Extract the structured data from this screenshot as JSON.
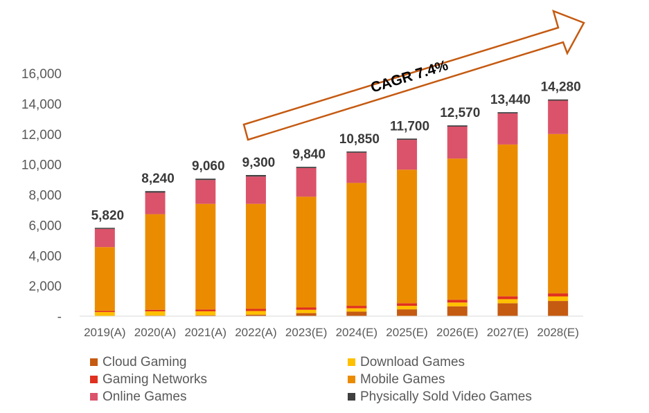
{
  "chart_data": {
    "type": "stacked-bar",
    "title": "",
    "xlabel": "",
    "ylabel": "",
    "ylim": [
      0,
      16000
    ],
    "yticks": [
      0,
      2000,
      4000,
      6000,
      8000,
      10000,
      12000,
      14000,
      16000
    ],
    "ytick_labels": [
      "-",
      "2,000",
      "4,000",
      "6,000",
      "8,000",
      "10,000",
      "12,000",
      "14,000",
      "16,000"
    ],
    "categories": [
      "2019(A)",
      "2020(A)",
      "2021(A)",
      "2022(A)",
      "2023(E)",
      "2024(E)",
      "2025(E)",
      "2026(E)",
      "2027(E)",
      "2028(E)"
    ],
    "totals": [
      5820,
      8240,
      9060,
      9300,
      9840,
      10850,
      11700,
      12570,
      13440,
      14280
    ],
    "total_labels": [
      "5,820",
      "8,240",
      "9,060",
      "9,300",
      "9,840",
      "10,850",
      "11,700",
      "12,570",
      "13,440",
      "14,280"
    ],
    "series": [
      {
        "name": "Cloud Gaming",
        "color": "#C55A11",
        "values": [
          20,
          40,
          60,
          100,
          200,
          300,
          450,
          650,
          850,
          1000
        ]
      },
      {
        "name": "Download Games",
        "color": "#FFC000",
        "values": [
          250,
          280,
          260,
          240,
          220,
          220,
          230,
          250,
          270,
          300
        ]
      },
      {
        "name": "Gaming Networks",
        "color": "#E0301E",
        "values": [
          80,
          100,
          120,
          140,
          150,
          160,
          170,
          180,
          190,
          200
        ]
      },
      {
        "name": "Mobile Games",
        "color": "#EB8C00",
        "values": [
          4200,
          6300,
          6960,
          6920,
          7300,
          8100,
          8800,
          9300,
          10000,
          10500
        ]
      },
      {
        "name": "Online Games",
        "color": "#DB536A",
        "values": [
          1200,
          1420,
          1570,
          1800,
          1890,
          1990,
          1970,
          2110,
          2050,
          2200
        ]
      },
      {
        "name": "Physically Sold Video Games",
        "color": "#404041",
        "values": [
          70,
          100,
          90,
          100,
          80,
          80,
          80,
          80,
          80,
          80
        ]
      }
    ],
    "annotation": "CAGR 7.4%",
    "legend_position": "bottom"
  }
}
